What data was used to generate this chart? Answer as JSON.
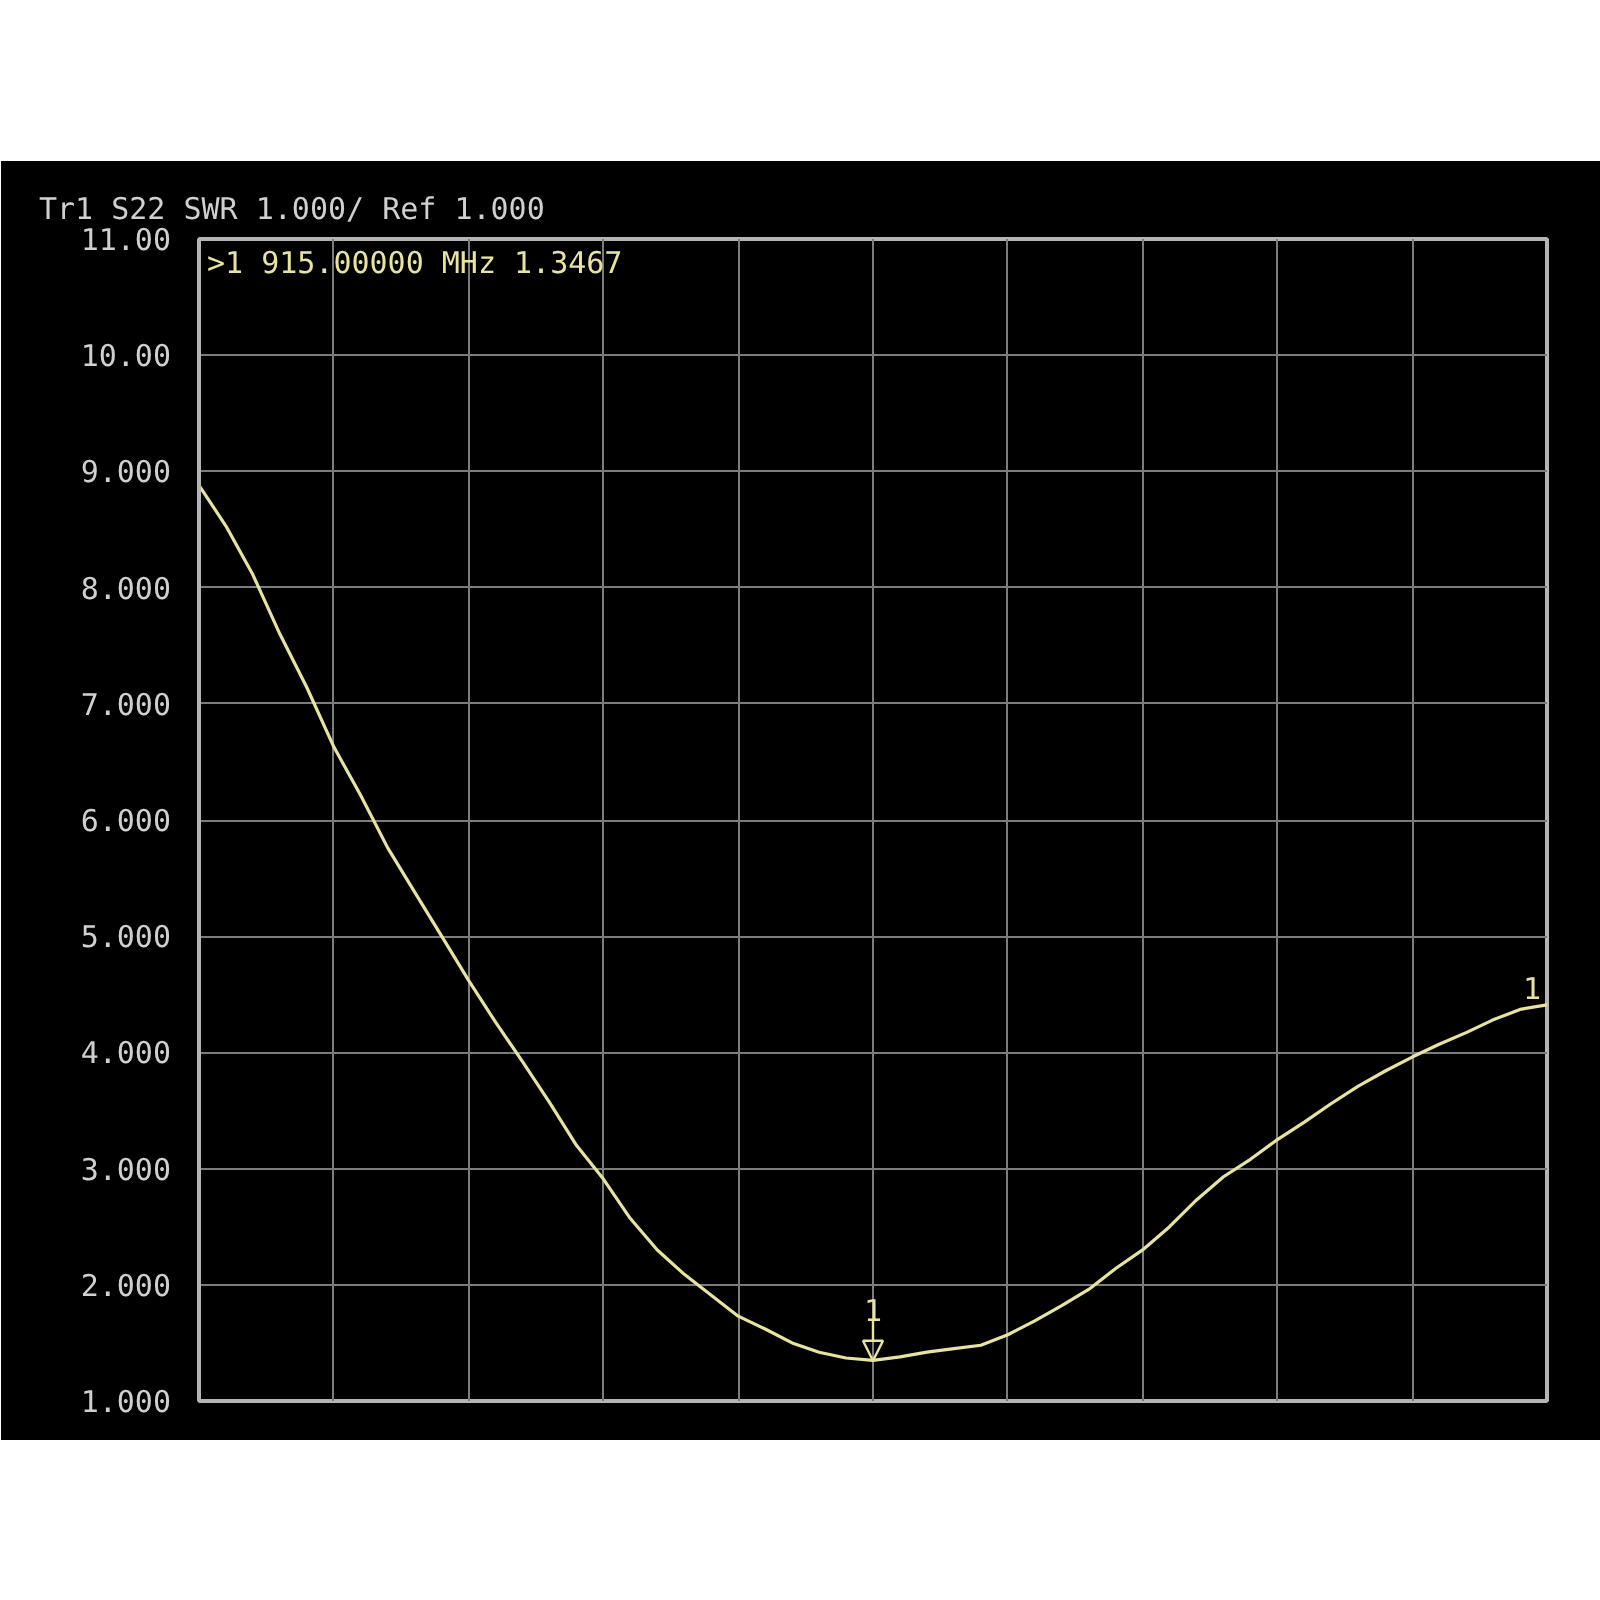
{
  "chart_data": {
    "type": "line",
    "title": "Tr1 S22 SWR 1.000/ Ref 1.000",
    "annotations": [
      ">1  915.00000 MHz  1.3467",
      {
        "text": "1",
        "y": 1.3467
      }
    ],
    "categories": [
      null,
      null,
      null,
      null,
      null,
      null,
      null,
      null,
      null,
      null,
      null,
      null,
      null,
      null,
      null,
      null,
      null,
      null,
      null,
      null,
      null,
      null,
      null,
      null,
      null,
      null,
      null,
      null,
      null,
      null,
      null,
      null,
      null,
      null,
      null,
      null,
      null,
      null,
      null,
      null,
      null,
      null,
      null,
      null,
      null,
      null,
      null,
      null,
      null,
      null,
      null
    ],
    "series": [
      {
        "name": "1",
        "color": "#e8e4a0",
        "values": [
          8.88,
          8.53,
          8.11,
          7.6,
          7.14,
          6.63,
          6.21,
          5.76,
          5.38,
          5.0,
          4.62,
          4.26,
          3.92,
          3.57,
          3.2,
          2.91,
          2.57,
          2.3,
          2.09,
          1.91,
          1.73,
          1.62,
          1.5,
          1.42,
          1.37,
          1.35,
          1.38,
          1.42,
          1.45,
          1.48,
          1.57,
          1.69,
          1.82,
          1.96,
          2.14,
          2.3,
          2.5,
          2.73,
          2.93,
          3.08,
          3.25,
          3.4,
          3.56,
          3.71,
          3.84,
          3.96,
          4.07,
          4.17,
          4.28,
          4.37,
          4.41
        ]
      }
    ],
    "ylim": [
      1,
      11
    ],
    "yticks": [
      {
        "value": 1,
        "label": "1.000"
      },
      {
        "value": 2,
        "label": "2.000"
      },
      {
        "value": 3,
        "label": "3.000"
      },
      {
        "value": 4,
        "label": "4.000"
      },
      {
        "value": 5,
        "label": "5.000"
      },
      {
        "value": 6,
        "label": "6.000"
      },
      {
        "value": 7,
        "label": "7.000"
      },
      {
        "value": 8,
        "label": "8.000"
      },
      {
        "value": 9,
        "label": "9.000"
      },
      {
        "value": 10,
        "label": "10.00"
      },
      {
        "value": 11,
        "label": "11.00"
      }
    ],
    "grid": true,
    "tick_labels": "y"
  }
}
